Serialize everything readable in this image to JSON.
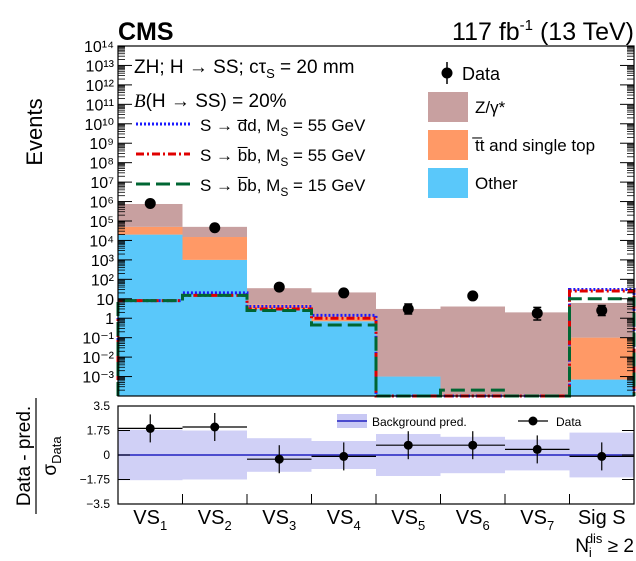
{
  "chart_data": {
    "type": "bar",
    "header": {
      "experiment": "CMS",
      "lumi": "117 fb",
      "lumi_sup": "-1",
      "energy": " (13 TeV)"
    },
    "annotations": {
      "process_line": "ZH; H → SS; cτ",
      "process_sub": "S",
      "process_tail": " = 20 mm",
      "br_prefix": "B",
      "br_line": "(H → SS) = 20%"
    },
    "ylabel": "Events",
    "ratio_ylabel": "Data - pred.",
    "ratio_ylabel_denominator": "σ",
    "ratio_ylabel_denominator_sub": "Data",
    "xlabel": "N",
    "xlabel_sub": "i",
    "xlabel_sup": "dis",
    "xlabel_tail": " ≥ 2",
    "log_y": true,
    "ylim": [
      0.0001,
      100000000000000
    ],
    "ratio_ylim": [
      -3.5,
      3.5
    ],
    "ytick_labels": [
      "10⁻³",
      "10⁻²",
      "10⁻¹",
      "1",
      "10",
      "10²",
      "10³",
      "10⁴",
      "10⁵",
      "10⁶",
      "10⁷",
      "10⁸",
      "10⁹",
      "10¹⁰",
      "10¹¹",
      "10¹²",
      "10¹³",
      "10¹⁴"
    ],
    "ratio_ytick_labels": [
      "3.5",
      "1.75",
      "0",
      "−1.75",
      "−3.5"
    ],
    "categories": [
      {
        "base": "VS",
        "sub": "1"
      },
      {
        "base": "VS",
        "sub": "2"
      },
      {
        "base": "VS",
        "sub": "3"
      },
      {
        "base": "VS",
        "sub": "4"
      },
      {
        "base": "VS",
        "sub": "5"
      },
      {
        "base": "VS",
        "sub": "6"
      },
      {
        "base": "VS",
        "sub": "7"
      },
      {
        "base": "Sig S",
        "sub": ""
      }
    ],
    "stack": [
      {
        "name": "Other",
        "color": "#5ac8fa",
        "values": [
          20000,
          1000,
          3,
          0.7,
          0.001,
          5e-05,
          0.0001,
          0.0007
        ]
      },
      {
        "name": "t̅t and single top",
        "color": "#ff9966",
        "values": [
          30000,
          14000,
          2,
          0.5,
          0.0,
          0.0,
          0.0,
          0.1
        ]
      },
      {
        "name": "Z/γ*",
        "color": "#c8a0a0",
        "values": [
          700000,
          35000,
          30,
          20,
          3,
          4,
          2,
          6
        ]
      }
    ],
    "stack_totals": [
      750000,
      50000,
      35,
      21,
      3,
      4,
      2,
      6.1
    ],
    "data": {
      "name": "Data",
      "values": [
        800000,
        45000,
        40,
        20,
        3,
        14,
        1.8,
        2.5
      ],
      "err_hi": [
        1.0,
        1.0,
        1.3,
        1.4,
        1.8,
        1.4,
        2.0,
        1.8
      ],
      "err_lo": [
        1.0,
        1.0,
        0.78,
        0.72,
        0.55,
        0.72,
        0.45,
        0.55
      ]
    },
    "signals": [
      {
        "name": "S → d̅d, M",
        "name_sub": "S",
        "name_tail": " = 55 GeV",
        "color": "#1a1aff",
        "dash": "2,2",
        "values": [
          8,
          20,
          4,
          1.4,
          5e-05,
          5e-05,
          5e-05,
          30
        ]
      },
      {
        "name": "S → b̅b, M",
        "name_sub": "S",
        "name_tail": " = 55 GeV",
        "color": "#e00000",
        "dash": "8,3,2,3",
        "values": [
          8,
          15,
          3,
          1.0,
          5e-05,
          5e-05,
          5e-05,
          25
        ]
      },
      {
        "name": "S → b̅b, M",
        "name_sub": "S",
        "name_tail": " = 15 GeV",
        "color": "#006633",
        "dash": "14,6",
        "values": [
          8,
          15,
          2.5,
          0.45,
          5e-05,
          0.0002,
          5e-05,
          10
        ]
      }
    ],
    "ratio": {
      "band_label": "Background pred.",
      "data_label": "Data",
      "points": [
        1.9,
        2.0,
        -0.3,
        -0.1,
        0.7,
        0.7,
        0.4,
        -0.1
      ],
      "band": [
        1.8,
        1.75,
        1.2,
        1.0,
        1.5,
        1.3,
        1.1,
        1.6
      ]
    },
    "legend_position": "top-right"
  }
}
